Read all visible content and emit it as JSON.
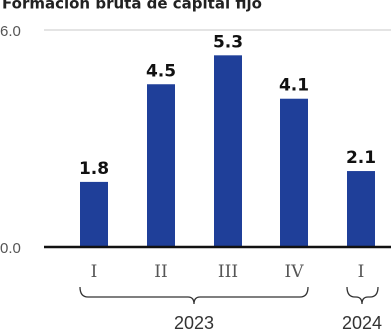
{
  "chart_data": {
    "type": "bar",
    "title": "Formación bruta de capital fijo",
    "categories": [
      "I",
      "II",
      "III",
      "IV",
      "I"
    ],
    "groups": [
      {
        "label": "2023",
        "categories": [
          "I",
          "II",
          "III",
          "IV"
        ]
      },
      {
        "label": "2024",
        "categories": [
          "I"
        ]
      }
    ],
    "values": [
      1.8,
      4.5,
      5.3,
      4.1,
      2.1
    ],
    "value_labels": [
      "1.8",
      "4.5",
      "5.3",
      "4.1",
      "2.1"
    ],
    "y_ticks": [
      "6.0",
      "0.0"
    ],
    "ylim": [
      0,
      6
    ],
    "xlabel": "",
    "ylabel": "",
    "grid": true,
    "bar_color": "#1f3f99",
    "axis_color": "#111111",
    "grid_color": "#c8c8c8"
  }
}
